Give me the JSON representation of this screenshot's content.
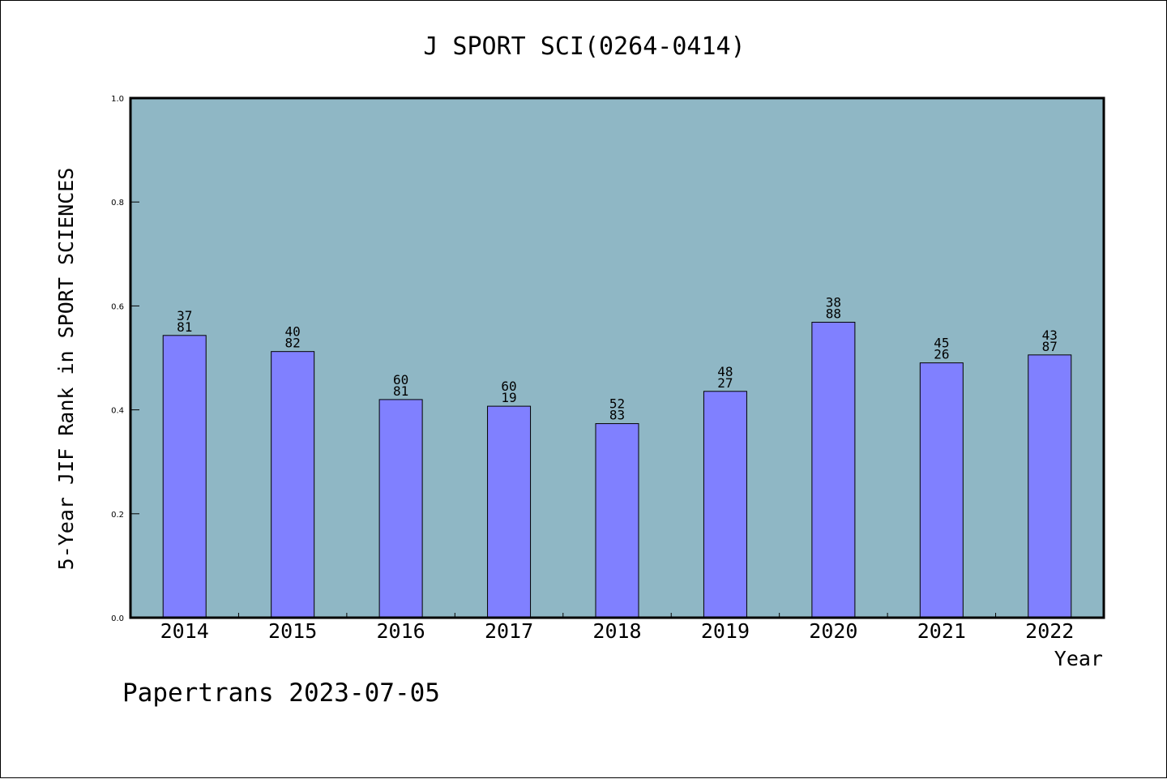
{
  "chart_data": {
    "type": "bar",
    "title": "J SPORT SCI(0264-0414)",
    "xlabel": "Year",
    "ylabel": "5-Year JIF Rank in SPORT SCIENCES",
    "categories": [
      "2014",
      "2015",
      "2016",
      "2017",
      "2018",
      "2019",
      "2020",
      "2021",
      "2022"
    ],
    "values": [
      0.5432,
      0.5122,
      0.4198,
      0.407,
      0.3735,
      0.4356,
      0.5686,
      0.4904,
      0.5057
    ],
    "bar_labels": [
      [
        "37",
        "81"
      ],
      [
        "40",
        "82"
      ],
      [
        "60",
        "81"
      ],
      [
        "60",
        "19"
      ],
      [
        "52",
        "83"
      ],
      [
        "48",
        "27"
      ],
      [
        "38",
        "88"
      ],
      [
        "45",
        "26"
      ],
      [
        "43",
        "87"
      ]
    ],
    "ylim": [
      0.0,
      1.0
    ],
    "yticks": [
      "0.0",
      "0.2",
      "0.4",
      "0.6",
      "0.8",
      "1.0"
    ],
    "grid": false,
    "legend": "none",
    "colors": {
      "plot_background": "#8fb7c5",
      "bar_fill": "#8080ff",
      "bar_stroke": "#000000"
    }
  },
  "footer": {
    "text": "Papertrans 2023-07-05"
  }
}
